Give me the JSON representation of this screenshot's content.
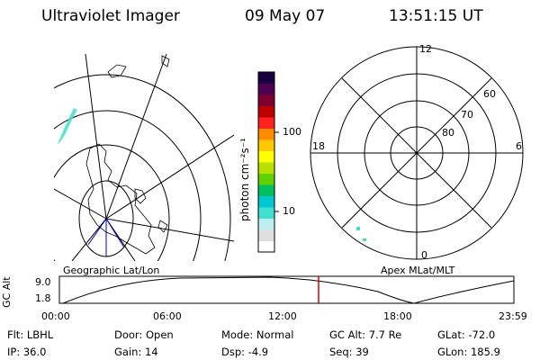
{
  "header": {
    "instrument": "Ultraviolet Imager",
    "date": "09 May 07",
    "time": "13:51:15 UT"
  },
  "colorbar": {
    "label": "photon cm⁻²s⁻¹",
    "ticks": [
      "100",
      "10"
    ],
    "colors": [
      "#ffffff",
      "#dfdfdf",
      "#bfeef0",
      "#40e0d0",
      "#00c8d0",
      "#00c060",
      "#60d000",
      "#b8e000",
      "#ffff00",
      "#ffc800",
      "#ff8c00",
      "#ff2020",
      "#c00000",
      "#800030",
      "#500050",
      "#1a0040"
    ]
  },
  "polar_plot": {
    "mlt_labels": {
      "top": "12",
      "left": "18",
      "right": "6",
      "bottom": "0"
    },
    "lat_labels": [
      "60",
      "70",
      "80"
    ]
  },
  "map_labels": {
    "left": "Geographic Lat/Lon",
    "right": "Apex MLat/MLT"
  },
  "altitude_panel": {
    "axis_label": "GC Alt",
    "y_ticks": [
      "9.0",
      "1.8"
    ],
    "x_ticks": [
      "00:00",
      "06:00",
      "12:00",
      "18:00",
      "23:59"
    ],
    "current_marker_color": "#e00000"
  },
  "info": {
    "filter": "Flt: LBHL",
    "door": "Door: Open",
    "mode": "Mode: Normal",
    "gc_alt": "GC Alt: 7.7 Re",
    "glat": "GLat: -72.0",
    "ip": "IP: 36.0",
    "gain": "Gain: 14",
    "dsp": "Dsp:    -4.9",
    "seq": "Seq: 39",
    "glon": "GLon: 185.9"
  }
}
